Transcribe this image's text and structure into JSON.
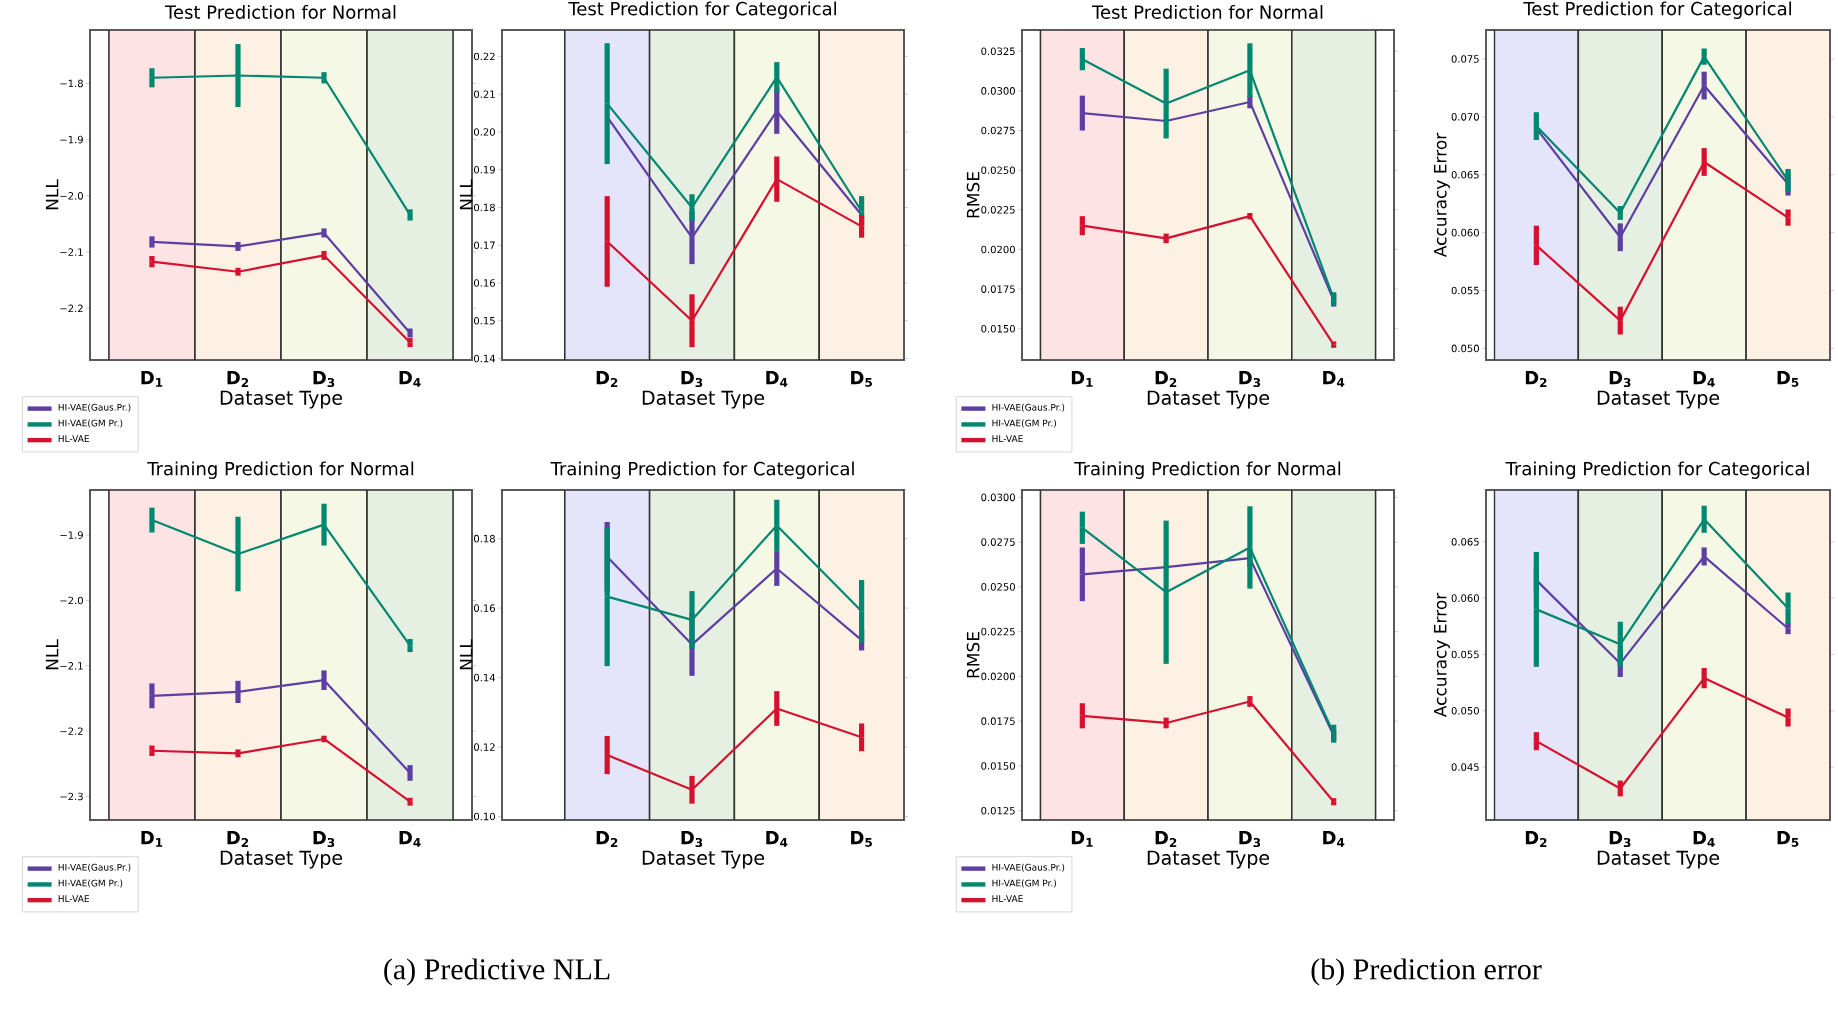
{
  "chart_data": [
    {
      "type": "line",
      "title": "Test Prediction for Normal",
      "xlabel": "Dataset Type",
      "ylabel": "NLL",
      "legend": "bottom left",
      "categories": [
        "D$_{1}$",
        "D$_{2}$",
        "D$_{3}$",
        "D$_{4}$"
      ],
      "ylim": [
        -2.292,
        -1.705
      ],
      "yticks": [
        {
          "value": -1.8,
          "label": "−1.8"
        },
        {
          "value": -1.9,
          "label": "−1.9"
        },
        {
          "value": -2.0,
          "label": "−2.0"
        },
        {
          "value": -2.1,
          "label": "−2.1"
        },
        {
          "value": -2.2,
          "label": "−2.2"
        }
      ],
      "bands": [
        {
          "axis": "x",
          "from": "D$_{1}$",
          "to": "D$_{1}$",
          "color": "#fde3e3"
        },
        {
          "axis": "x",
          "from": "D$_{2}$",
          "to": "D$_{2}$",
          "color": "#fdf1e3"
        },
        {
          "axis": "x",
          "from": "D$_{3}$",
          "to": "D$_{3}$",
          "color": "#f6f8e6"
        },
        {
          "axis": "x",
          "from": "D$_{4}$",
          "to": "D$_{4}$",
          "color": "#e5f0e3"
        }
      ],
      "series": [
        {
          "name": "HI-VAE(Gaus.Pr.)",
          "color": "#5d3fa3",
          "values": [
            -2.082,
            -2.09,
            -2.066,
            -2.244
          ],
          "errors": [
            0.01,
            0.008,
            0.008,
            0.008
          ]
        },
        {
          "name": "HI-VAE(GM Pr.)",
          "color": "#00876f",
          "values": [
            -1.79,
            -1.786,
            -1.79,
            -2.034
          ],
          "errors": [
            0.017,
            0.056,
            0.01,
            0.01
          ]
        },
        {
          "name": "HL-VAE",
          "color": "#d6112f",
          "values": [
            -2.117,
            -2.135,
            -2.106,
            -2.261
          ],
          "errors": [
            0.01,
            0.007,
            0.008,
            0.008
          ]
        }
      ]
    },
    {
      "type": "line",
      "title": "Test Prediction for Categorical",
      "xlabel": "Dataset Type",
      "ylabel": "NLL",
      "categories": [
        "D$_{2}$",
        "D$_{3}$",
        "D$_{4}$",
        "D$_{5}$"
      ],
      "ylim": [
        0.1396,
        0.227
      ],
      "yticks": [
        {
          "value": 0.14,
          "label": "0.14"
        },
        {
          "value": 0.15,
          "label": "0.15"
        },
        {
          "value": 0.16,
          "label": "0.16"
        },
        {
          "value": 0.17,
          "label": "0.17"
        },
        {
          "value": 0.18,
          "label": "0.18"
        },
        {
          "value": 0.19,
          "label": "0.19"
        },
        {
          "value": 0.2,
          "label": "0.20"
        },
        {
          "value": 0.21,
          "label": "0.21"
        },
        {
          "value": 0.22,
          "label": "0.22"
        }
      ],
      "bands": [
        {
          "axis": "x",
          "from": "D$_{2}$",
          "to": "D$_{2}$",
          "color": "#e4e4fb"
        },
        {
          "axis": "x",
          "from": "D$_{3}$",
          "to": "D$_{3}$",
          "color": "#e5f0e3"
        },
        {
          "axis": "x",
          "from": "D$_{4}$",
          "to": "D$_{4}$",
          "color": "#f6f8e6"
        },
        {
          "axis": "x",
          "from": "D$_{5}$",
          "to": "D$_{5}$",
          "color": "#fdf1e3"
        }
      ],
      "series": [
        {
          "color": "#5d3fa3",
          "values": [
            0.204,
            0.172,
            0.2055,
            0.178
          ],
          "errors": [
            null,
            0.007,
            0.006,
            null
          ]
        },
        {
          "color": "#00876f",
          "values": [
            0.2075,
            0.18,
            0.2145,
            0.179
          ],
          "errors": [
            0.016,
            0.0035,
            0.004,
            0.004
          ]
        },
        {
          "color": "#d6112f",
          "values": [
            0.171,
            0.15,
            0.1875,
            0.175
          ],
          "errors": [
            0.012,
            0.007,
            0.006,
            0.003
          ]
        }
      ]
    },
    {
      "type": "line",
      "title": "Test Prediction for Normal",
      "xlabel": "Dataset Type",
      "ylabel": "RMSE",
      "legend": "bottom left",
      "categories": [
        "D$_{1}$",
        "D$_{2}$",
        "D$_{3}$",
        "D$_{4}$"
      ],
      "ylim": [
        0.01303,
        0.03384
      ],
      "yticks": [
        {
          "value": 0.015,
          "label": "0.0150"
        },
        {
          "value": 0.0175,
          "label": "0.0175"
        },
        {
          "value": 0.02,
          "label": "0.0200"
        },
        {
          "value": 0.0225,
          "label": "0.0225"
        },
        {
          "value": 0.025,
          "label": "0.0250"
        },
        {
          "value": 0.0275,
          "label": "0.0275"
        },
        {
          "value": 0.03,
          "label": "0.0300"
        },
        {
          "value": 0.0325,
          "label": "0.0325"
        }
      ],
      "bands": [
        {
          "axis": "x",
          "from": "D$_{1}$",
          "to": "D$_{1}$",
          "color": "#fde3e3"
        },
        {
          "axis": "x",
          "from": "D$_{2}$",
          "to": "D$_{2}$",
          "color": "#fdf1e3"
        },
        {
          "axis": "x",
          "from": "D$_{3}$",
          "to": "D$_{3}$",
          "color": "#f6f8e6"
        },
        {
          "axis": "x",
          "from": "D$_{4}$",
          "to": "D$_{4}$",
          "color": "#e5f0e3"
        }
      ],
      "series": [
        {
          "name": "HI-VAE(Gaus.Pr.)",
          "color": "#5d3fa3",
          "values": [
            0.0286,
            0.0281,
            0.0293,
            0.0168
          ],
          "errors": [
            0.0011,
            null,
            0.0004,
            0.0004
          ]
        },
        {
          "name": "HI-VAE(GM Pr.)",
          "color": "#00876f",
          "values": [
            0.032,
            0.0292,
            0.0313,
            0.0169
          ],
          "errors": [
            0.0007,
            0.0022,
            0.0017,
            0.0004
          ]
        },
        {
          "name": "HL-VAE",
          "color": "#d6112f",
          "values": [
            0.0215,
            0.0207,
            0.0221,
            0.014
          ],
          "errors": [
            0.0006,
            0.0003,
            0.0002,
            0.0002
          ]
        }
      ]
    },
    {
      "type": "line",
      "title": "Test Prediction for Categorical",
      "xlabel": "Dataset Type",
      "ylabel": "Accuracy Error",
      "categories": [
        "D$_{2}$",
        "D$_{3}$",
        "D$_{4}$",
        "D$_{5}$"
      ],
      "ylim": [
        0.049,
        0.0775
      ],
      "yticks": [
        {
          "value": 0.05,
          "label": "0.050"
        },
        {
          "value": 0.055,
          "label": "0.055"
        },
        {
          "value": 0.06,
          "label": "0.060"
        },
        {
          "value": 0.065,
          "label": "0.065"
        },
        {
          "value": 0.07,
          "label": "0.070"
        },
        {
          "value": 0.075,
          "label": "0.075"
        }
      ],
      "bands": [
        {
          "axis": "x",
          "from": "D$_{2}$",
          "to": "D$_{2}$",
          "color": "#e4e4fb"
        },
        {
          "axis": "x",
          "from": "D$_{3}$",
          "to": "D$_{3}$",
          "color": "#e5f0e3"
        },
        {
          "axis": "x",
          "from": "D$_{4}$",
          "to": "D$_{4}$",
          "color": "#f6f8e6"
        },
        {
          "axis": "x",
          "from": "D$_{5}$",
          "to": "D$_{5}$",
          "color": "#fdf1e3"
        }
      ],
      "series": [
        {
          "color": "#5d3fa3",
          "values": [
            0.069,
            0.0596,
            0.0727,
            0.0642
          ],
          "errors": [
            null,
            0.0012,
            0.0012,
            0.001
          ]
        },
        {
          "color": "#00876f",
          "values": [
            0.0692,
            0.0617,
            0.0752,
            0.0645
          ],
          "errors": [
            0.0012,
            0.0006,
            0.0007,
            0.001
          ]
        },
        {
          "color": "#d6112f",
          "values": [
            0.0589,
            0.0524,
            0.0661,
            0.0613
          ],
          "errors": [
            0.0017,
            0.0012,
            0.0012,
            0.0007
          ]
        }
      ]
    },
    {
      "type": "line",
      "title": "Training Prediction for Normal",
      "xlabel": "Dataset Type",
      "ylabel": "NLL",
      "legend": "bottom left",
      "annotations": [
        "(a) Predictive NLL"
      ],
      "categories": [
        "D$_{1}$",
        "D$_{2}$",
        "D$_{3}$",
        "D$_{4}$"
      ],
      "ylim": [
        -2.336,
        -1.831
      ],
      "yticks": [
        {
          "value": -1.9,
          "label": "−1.9"
        },
        {
          "value": -2.0,
          "label": "−2.0"
        },
        {
          "value": -2.1,
          "label": "−2.1"
        },
        {
          "value": -2.2,
          "label": "−2.2"
        },
        {
          "value": -2.3,
          "label": "−2.3"
        }
      ],
      "bands": [
        {
          "axis": "x",
          "from": "D$_{1}$",
          "to": "D$_{1}$",
          "color": "#fde3e3"
        },
        {
          "axis": "x",
          "from": "D$_{2}$",
          "to": "D$_{2}$",
          "color": "#fdf1e3"
        },
        {
          "axis": "x",
          "from": "D$_{3}$",
          "to": "D$_{3}$",
          "color": "#f6f8e6"
        },
        {
          "axis": "x",
          "from": "D$_{4}$",
          "to": "D$_{4}$",
          "color": "#e5f0e3"
        }
      ],
      "series": [
        {
          "name": "HI-VAE(Gaus.Pr.)",
          "color": "#5d3fa3",
          "values": [
            -2.146,
            -2.14,
            -2.122,
            -2.264
          ],
          "errors": [
            0.019,
            0.017,
            0.015,
            0.012
          ]
        },
        {
          "name": "HI-VAE(GM Pr.)",
          "color": "#00876f",
          "values": [
            -1.877,
            -1.929,
            -1.884,
            -2.069
          ],
          "errors": [
            0.019,
            0.057,
            0.032,
            0.01
          ]
        },
        {
          "name": "HL-VAE",
          "color": "#d6112f",
          "values": [
            -2.23,
            -2.234,
            -2.212,
            -2.308
          ],
          "errors": [
            0.008,
            0.006,
            0.005,
            0.006
          ]
        }
      ]
    },
    {
      "type": "line",
      "title": "Training Prediction for Categorical",
      "xlabel": "Dataset Type",
      "ylabel": "NLL",
      "categories": [
        "D$_{2}$",
        "D$_{3}$",
        "D$_{4}$",
        "D$_{5}$"
      ],
      "ylim": [
        0.099,
        0.194
      ],
      "yticks": [
        {
          "value": 0.1,
          "label": "0.10"
        },
        {
          "value": 0.12,
          "label": "0.12"
        },
        {
          "value": 0.14,
          "label": "0.14"
        },
        {
          "value": 0.16,
          "label": "0.16"
        },
        {
          "value": 0.18,
          "label": "0.18"
        }
      ],
      "bands": [
        {
          "axis": "x",
          "from": "D$_{2}$",
          "to": "D$_{2}$",
          "color": "#e4e4fb"
        },
        {
          "axis": "x",
          "from": "D$_{3}$",
          "to": "D$_{3}$",
          "color": "#e5f0e3"
        },
        {
          "axis": "x",
          "from": "D$_{4}$",
          "to": "D$_{4}$",
          "color": "#f6f8e6"
        },
        {
          "axis": "x",
          "from": "D$_{5}$",
          "to": "D$_{5}$",
          "color": "#fdf1e3"
        }
      ],
      "series": [
        {
          "color": "#5d3fa3",
          "values": [
            0.1748,
            0.1495,
            0.1714,
            0.1508
          ],
          "errors": [
            0.01,
            0.009,
            0.005,
            0.003
          ]
        },
        {
          "color": "#00876f",
          "values": [
            0.1633,
            0.1566,
            0.1838,
            0.1591
          ],
          "errors": [
            0.02,
            0.0083,
            0.0074,
            0.009
          ]
        },
        {
          "color": "#d6112f",
          "values": [
            0.1177,
            0.1077,
            0.1311,
            0.1228
          ],
          "errors": [
            0.0055,
            0.004,
            0.005,
            0.004
          ]
        }
      ]
    },
    {
      "type": "line",
      "title": "Training Prediction for Normal",
      "xlabel": "Dataset Type",
      "ylabel": "RMSE",
      "legend": "bottom left",
      "annotations": [
        "(b) Prediction error"
      ],
      "categories": [
        "D$_{1}$",
        "D$_{2}$",
        "D$_{3}$",
        "D$_{4}$"
      ],
      "ylim": [
        0.01198,
        0.03041
      ],
      "yticks": [
        {
          "value": 0.0125,
          "label": "0.0125"
        },
        {
          "value": 0.015,
          "label": "0.0150"
        },
        {
          "value": 0.0175,
          "label": "0.0175"
        },
        {
          "value": 0.02,
          "label": "0.0200"
        },
        {
          "value": 0.0225,
          "label": "0.0225"
        },
        {
          "value": 0.025,
          "label": "0.0250"
        },
        {
          "value": 0.0275,
          "label": "0.0275"
        },
        {
          "value": 0.03,
          "label": "0.0300"
        }
      ],
      "bands": [
        {
          "axis": "x",
          "from": "D$_{1}$",
          "to": "D$_{1}$",
          "color": "#fde3e3"
        },
        {
          "axis": "x",
          "from": "D$_{2}$",
          "to": "D$_{2}$",
          "color": "#fdf1e3"
        },
        {
          "axis": "x",
          "from": "D$_{3}$",
          "to": "D$_{3}$",
          "color": "#f6f8e6"
        },
        {
          "axis": "x",
          "from": "D$_{4}$",
          "to": "D$_{4}$",
          "color": "#e5f0e3"
        }
      ],
      "series": [
        {
          "name": "HI-VAE(Gaus.Pr.)",
          "color": "#5d3fa3",
          "values": [
            0.0257,
            0.0261,
            0.0266,
            0.0167
          ],
          "errors": [
            0.0015,
            null,
            0.0005,
            0.0003
          ]
        },
        {
          "name": "HI-VAE(GM Pr.)",
          "color": "#00876f",
          "values": [
            0.0283,
            0.0247,
            0.0272,
            0.0168
          ],
          "errors": [
            0.0009,
            0.004,
            0.0023,
            0.0005
          ]
        },
        {
          "name": "HL-VAE",
          "color": "#d6112f",
          "values": [
            0.0178,
            0.0174,
            0.0186,
            0.013
          ],
          "errors": [
            0.0007,
            0.0003,
            0.0003,
            0.0002
          ]
        }
      ]
    },
    {
      "type": "line",
      "title": "Training Prediction for Categorical",
      "xlabel": "Dataset Type",
      "ylabel": "Accuracy Error",
      "categories": [
        "D$_{2}$",
        "D$_{3}$",
        "D$_{4}$",
        "D$_{5}$"
      ],
      "ylim": [
        0.0403,
        0.0696
      ],
      "yticks": [
        {
          "value": 0.045,
          "label": "0.045"
        },
        {
          "value": 0.05,
          "label": "0.050"
        },
        {
          "value": 0.055,
          "label": "0.055"
        },
        {
          "value": 0.06,
          "label": "0.060"
        },
        {
          "value": 0.065,
          "label": "0.065"
        }
      ],
      "bands": [
        {
          "axis": "x",
          "from": "D$_{2}$",
          "to": "D$_{2}$",
          "color": "#e4e4fb"
        },
        {
          "axis": "x",
          "from": "D$_{3}$",
          "to": "D$_{3}$",
          "color": "#e5f0e3"
        },
        {
          "axis": "x",
          "from": "D$_{4}$",
          "to": "D$_{4}$",
          "color": "#f6f8e6"
        },
        {
          "axis": "x",
          "from": "D$_{5}$",
          "to": "D$_{5}$",
          "color": "#fdf1e3"
        }
      ],
      "series": [
        {
          "color": "#5d3fa3",
          "values": [
            0.0616,
            0.0542,
            0.0637,
            0.0573
          ],
          "errors": [
            0.0012,
            0.0012,
            0.0008,
            0.0005
          ]
        },
        {
          "color": "#00876f",
          "values": [
            0.059,
            0.0559,
            0.067,
            0.0591
          ],
          "errors": [
            0.0051,
            0.002,
            0.0012,
            0.0014
          ]
        },
        {
          "color": "#d6112f",
          "values": [
            0.0473,
            0.0431,
            0.0529,
            0.0494
          ],
          "errors": [
            0.0008,
            0.0007,
            0.0009,
            0.0008
          ]
        }
      ]
    }
  ]
}
